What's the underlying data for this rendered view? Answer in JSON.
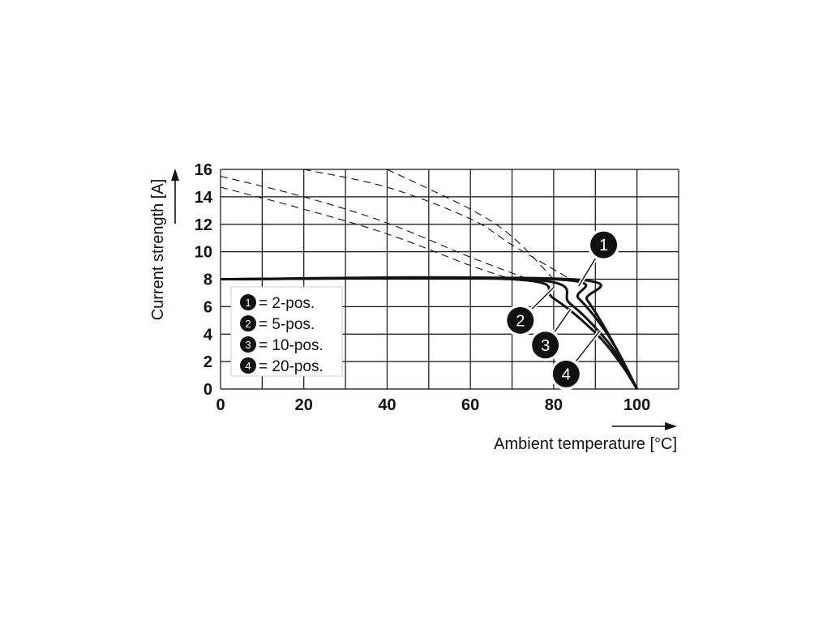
{
  "chart_data": {
    "type": "line",
    "xlabel": "Ambient temperature [°C]",
    "ylabel": "Current strength [A]",
    "xlim": [
      0,
      110
    ],
    "ylim": [
      0,
      16
    ],
    "x_ticks": [
      "0",
      "20",
      "40",
      "60",
      "80",
      "100"
    ],
    "y_ticks": [
      "0",
      "2",
      "4",
      "6",
      "8",
      "10",
      "12",
      "14",
      "16"
    ],
    "grid": true,
    "legend": {
      "placement": "left",
      "entries": [
        {
          "num": "1",
          "label": "= 2-pos."
        },
        {
          "num": "2",
          "label": "= 5-pos."
        },
        {
          "num": "3",
          "label": "= 10-pos."
        },
        {
          "num": "4",
          "label": "= 20-pos."
        }
      ]
    },
    "series": [
      {
        "name": "2-pos.",
        "marker": "1",
        "solid": [
          [
            0,
            8
          ],
          [
            84,
            8
          ],
          [
            88,
            6.5
          ],
          [
            92,
            4.6
          ],
          [
            96,
            2.4
          ],
          [
            100,
            0
          ]
        ],
        "dashed": [
          [
            20,
            16
          ],
          [
            40,
            14.7
          ],
          [
            60,
            12.4
          ],
          [
            70,
            10.5
          ],
          [
            84,
            8
          ]
        ]
      },
      {
        "name": "5-pos.",
        "marker": "2",
        "solid": [
          [
            0,
            8
          ],
          [
            80,
            8
          ],
          [
            86,
            6.6
          ],
          [
            92,
            4.4
          ],
          [
            96,
            2.4
          ],
          [
            100,
            0
          ]
        ],
        "dashed": [
          [
            40,
            16
          ],
          [
            60,
            13.1
          ],
          [
            70,
            11.1
          ],
          [
            80,
            8
          ]
        ]
      },
      {
        "name": "10-pos.",
        "marker": "3",
        "solid": [
          [
            0,
            8
          ],
          [
            74,
            8
          ],
          [
            84,
            6.2
          ],
          [
            92,
            3.8
          ],
          [
            96,
            2.1
          ],
          [
            100,
            0
          ]
        ],
        "dashed": [
          [
            0,
            15.5
          ],
          [
            20,
            14
          ],
          [
            40,
            12.1
          ],
          [
            60,
            9.6
          ],
          [
            74,
            8
          ]
        ]
      },
      {
        "name": "20-pos.",
        "marker": "4",
        "solid": [
          [
            0,
            8
          ],
          [
            70,
            8
          ],
          [
            80,
            6.6
          ],
          [
            90,
            4.1
          ],
          [
            96,
            1.9
          ],
          [
            100,
            0
          ]
        ],
        "dashed": [
          [
            0,
            14.7
          ],
          [
            20,
            13.1
          ],
          [
            40,
            11.3
          ],
          [
            60,
            9
          ],
          [
            70,
            8
          ]
        ]
      }
    ],
    "callouts": [
      {
        "num": "1",
        "x": 92,
        "y": 10.5,
        "to": [
          86,
          7.5
        ]
      },
      {
        "num": "2",
        "x": 72,
        "y": 5,
        "to": [
          80,
          7.4
        ]
      },
      {
        "num": "3",
        "x": 78,
        "y": 3.2,
        "to": [
          84,
          5.8
        ]
      },
      {
        "num": "4",
        "x": 83,
        "y": 1.1,
        "to": [
          91,
          4.2
        ]
      }
    ],
    "line_color": "#111111",
    "badge_color": "#111111"
  }
}
